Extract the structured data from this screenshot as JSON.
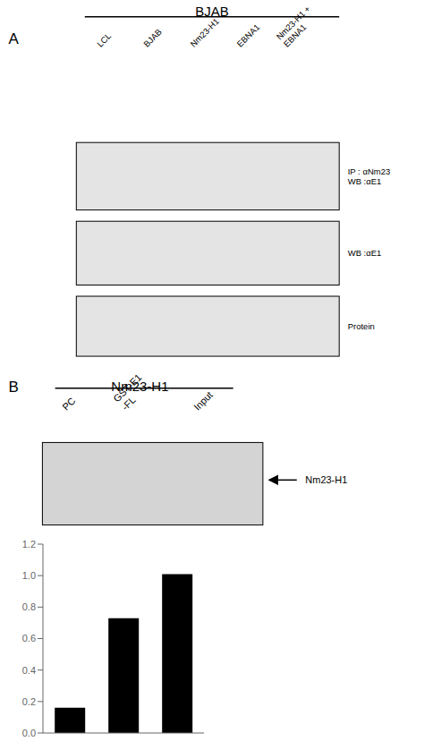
{
  "chart_data": {
    "type": "bar",
    "categories": [
      null,
      null,
      null
    ],
    "values": [
      0.16,
      0.73,
      1.01
    ],
    "color": "#000000",
    "ylim": [
      0,
      1.2
    ],
    "yticks": [
      {
        "value": 0,
        "label": "0.0"
      },
      0.2,
      0.4,
      0.6,
      0.8,
      {
        "value": 1,
        "label": "1.0"
      },
      1.2
    ],
    "tick_labels": "y",
    "grid": false,
    "annotations": [
      "BJAB",
      "A",
      "LCL",
      "BJAB",
      "Nm23-H1",
      "EBNA1",
      "Nm23-H1 +\nEBNA1",
      "IP : αNm23\nWB :αE1",
      "WB :αE1",
      "Protein",
      "B",
      "Nm23-H1",
      "PC",
      "GST-E1\n-FL",
      "Input",
      "Nm23-H1"
    ]
  }
}
